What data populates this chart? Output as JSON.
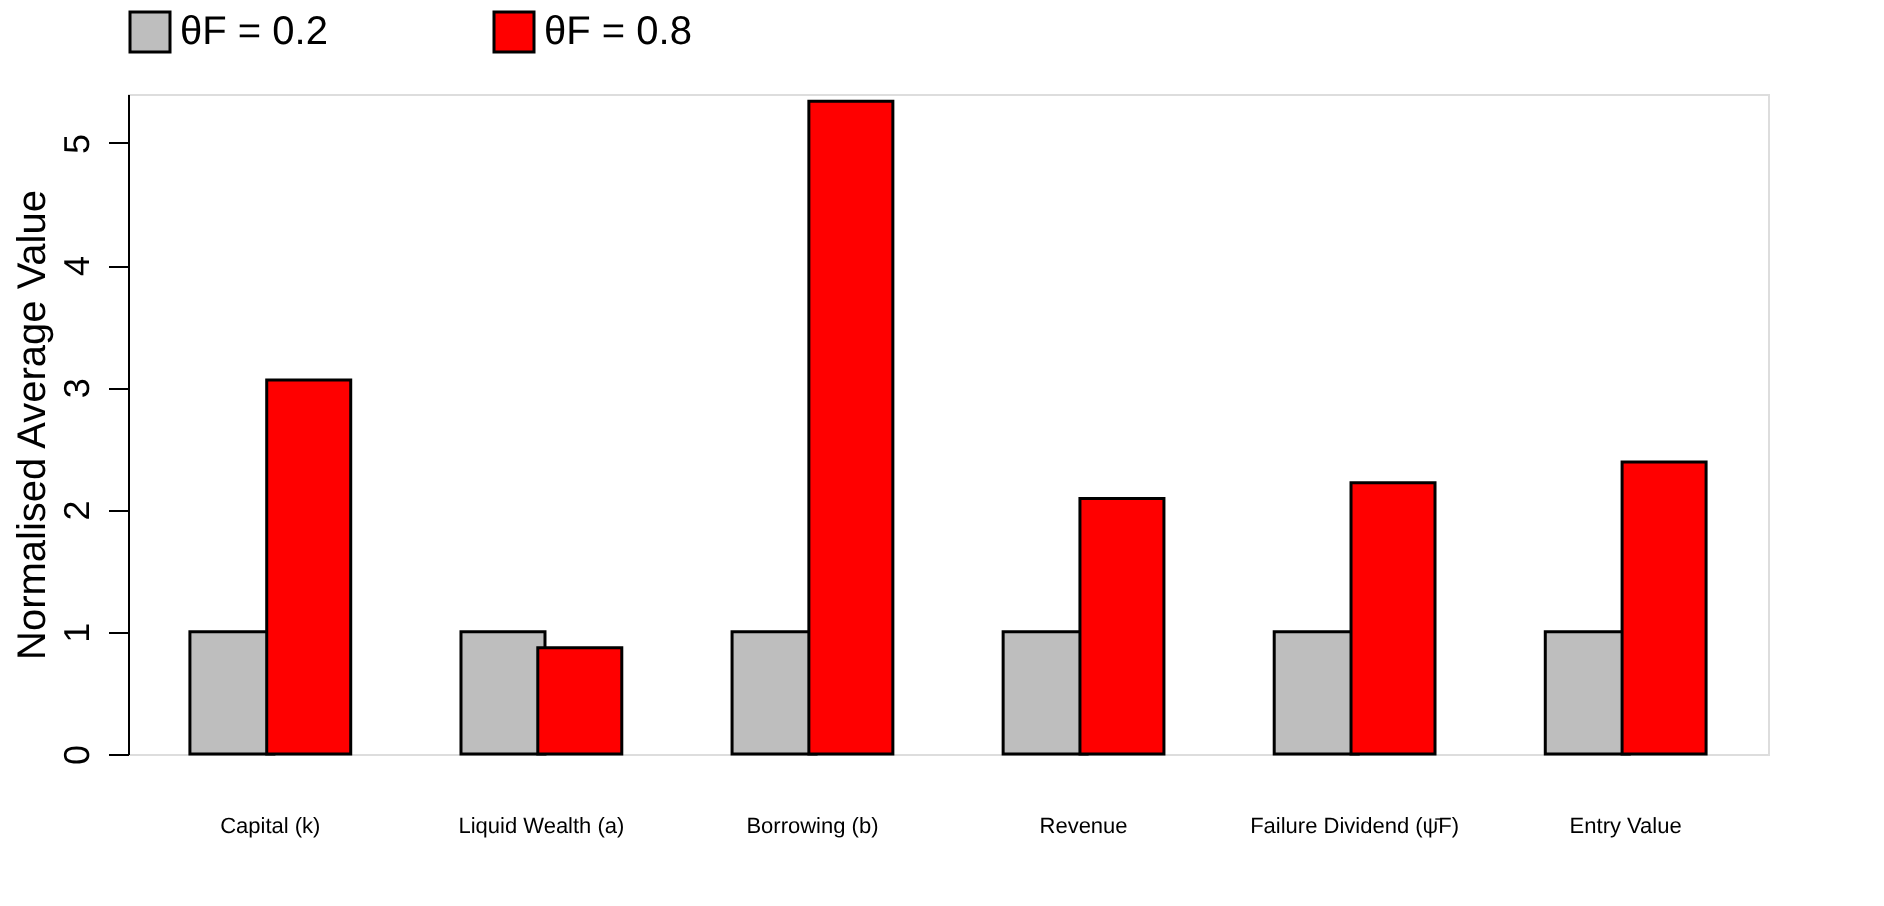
{
  "chart_data": {
    "type": "bar",
    "ylabel": "Normalised Average Value",
    "categories": [
      "Capital (k)",
      "Liquid Wealth (a)",
      "Borrowing (b)",
      "Revenue",
      "Failure Dividend (ψ̄F)",
      "Entry Value"
    ],
    "series": [
      {
        "name": "θF = 0.2",
        "color": "#bebebe",
        "values": [
          1,
          1,
          1,
          1,
          1,
          1
        ]
      },
      {
        "name": "θF = 0.8",
        "color": "#ff0000",
        "values": [
          3.06,
          0.87,
          5.34,
          2.09,
          2.22,
          2.39
        ]
      }
    ],
    "ylim": [
      0,
      5.4
    ],
    "yticks": [
      0,
      1,
      2,
      3,
      4,
      5
    ],
    "grid": false,
    "legend": "top"
  }
}
